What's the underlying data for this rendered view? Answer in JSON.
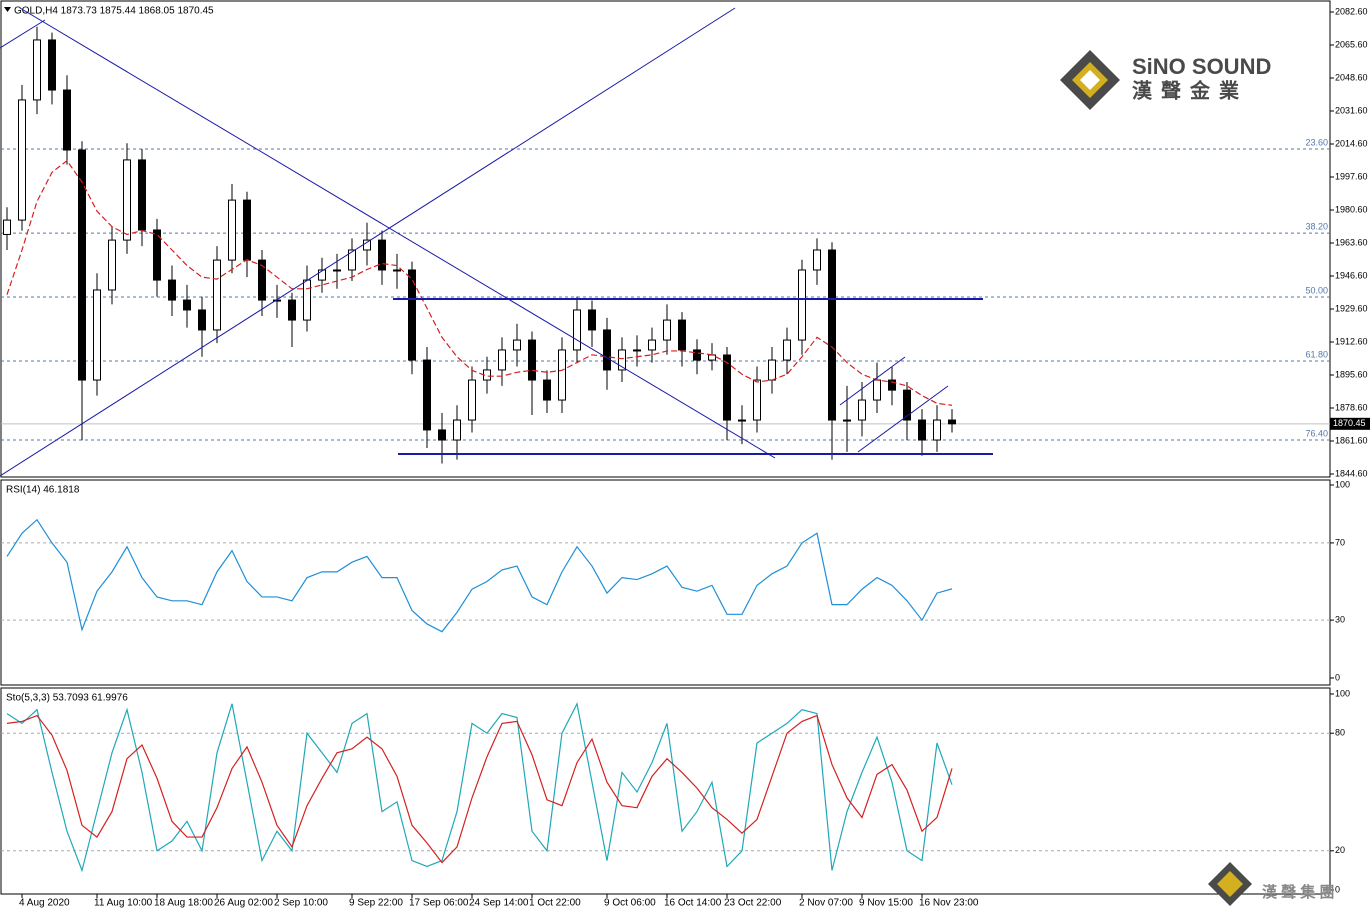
{
  "chart_data": [
    {
      "type": "candlestick",
      "title": "GOLD,H4  1873.73 1875.44 1868.05 1870.45",
      "open": [
        1968,
        1975.4,
        2037.3,
        2068.2,
        2042.4,
        2011.5,
        1893.0,
        1939.4,
        1965.1,
        2006.4,
        1970.3,
        1944.5,
        1934.2,
        1929.1,
        1918.8,
        1954.8,
        1985.7,
        1954.8,
        1934.2,
        1934.2,
        1923.9,
        1944.5,
        1949.7,
        1949.7,
        1960.0,
        1965.1,
        1949.7,
        1949.7,
        1903.3,
        1867.3,
        1862.1,
        1872.4,
        1893.0,
        1898.2,
        1908.5,
        1913.6,
        1893.0,
        1882.7,
        1908.5,
        1929.1,
        1918.8,
        1898.2,
        1908.5,
        1908.5,
        1913.6,
        1923.9,
        1908.5,
        1903.3,
        1905.9,
        1872.4,
        1872.4,
        1893.0,
        1903.3,
        1913.6,
        1949.7,
        1960.0,
        1872.4,
        1872.4,
        1882.7,
        1893.0,
        1887.8,
        1872.4,
        1862.1,
        1872.4
      ],
      "high": [
        1982,
        2045,
        2075,
        2072,
        2050,
        2016,
        1948,
        1972,
        2015,
        2012,
        1976,
        1952,
        1942,
        1936,
        1962,
        1994,
        1990,
        1960,
        1942,
        1938,
        1952,
        1956,
        1958,
        1966,
        1974,
        1970,
        1958,
        1954,
        1910,
        1876,
        1880,
        1900,
        1905,
        1915,
        1922,
        1918,
        1898,
        1915,
        1936,
        1934,
        1925,
        1915,
        1916,
        1920,
        1932,
        1928,
        1914,
        1912,
        1910,
        1880,
        1900,
        1910,
        1920,
        1955,
        1966,
        1964,
        1890,
        1892,
        1902,
        1900,
        1892,
        1878,
        1880,
        1878
      ],
      "low": [
        1960,
        1970,
        2030,
        2035,
        2004,
        1862,
        1885,
        1932,
        1958,
        1962,
        1936,
        1926,
        1920,
        1905,
        1912,
        1948,
        1946,
        1926,
        1925,
        1910,
        1918,
        1938,
        1940,
        1944,
        1952,
        1942,
        1940,
        1896,
        1858,
        1850,
        1852,
        1866,
        1886,
        1890,
        1900,
        1875,
        1876,
        1876,
        1902,
        1910,
        1888,
        1892,
        1900,
        1902,
        1906,
        1900,
        1896,
        1898,
        1862,
        1860,
        1866,
        1886,
        1896,
        1906,
        1942,
        1852,
        1856,
        1864,
        1876,
        1880,
        1862,
        1854,
        1856,
        1866
      ],
      "close": [
        1975.4,
        2037.3,
        2068.2,
        2042.4,
        2011.5,
        1893.0,
        1939.4,
        1965.1,
        2006.4,
        1970.3,
        1944.5,
        1934.2,
        1929.1,
        1918.8,
        1954.8,
        1985.7,
        1954.8,
        1934.2,
        1934.2,
        1923.9,
        1944.5,
        1949.7,
        1949.7,
        1960.0,
        1965.1,
        1949.7,
        1949.7,
        1903.3,
        1867.3,
        1862.1,
        1872.4,
        1893.0,
        1898.2,
        1908.5,
        1913.6,
        1893.0,
        1882.7,
        1908.5,
        1929.1,
        1918.8,
        1898.2,
        1908.5,
        1908.5,
        1913.6,
        1923.9,
        1908.5,
        1903.3,
        1905.9,
        1872.4,
        1872.4,
        1893.0,
        1903.3,
        1913.6,
        1949.7,
        1960.0,
        1872.4,
        1872.4,
        1882.7,
        1893.0,
        1887.8,
        1872.4,
        1862.1,
        1872.4,
        1870.45
      ],
      "up_color": "#ffffff",
      "down_color": "#000000",
      "series": [
        {
          "color": "#d42020",
          "dashed": true,
          "values": [
            1937,
            1960,
            1985,
            2000,
            2006,
            1995,
            1980,
            1972,
            1968,
            1970,
            1968,
            1960,
            1952,
            1946,
            1945,
            1950,
            1955,
            1952,
            1946,
            1940,
            1940,
            1942,
            1944,
            1946,
            1950,
            1953,
            1952,
            1945,
            1930,
            1915,
            1905,
            1898,
            1895,
            1895,
            1897,
            1898,
            1897,
            1898,
            1902,
            1906,
            1905,
            1904,
            1905,
            1906,
            1908,
            1908,
            1907,
            1906,
            1902,
            1896,
            1892,
            1893,
            1896,
            1905,
            1915,
            1910,
            1902,
            1896,
            1893,
            1892,
            1890,
            1885,
            1881,
            1880
          ]
        }
      ],
      "ylim": [
        1844.6,
        2082.6
      ],
      "yticks": [
        {
          "value": 2082.6,
          "label": "2082.60"
        },
        {
          "value": 2065.6,
          "label": "2065.60"
        },
        {
          "value": 2048.6,
          "label": "2048.60"
        },
        {
          "value": 2031.6,
          "label": "2031.60"
        },
        {
          "value": 2014.6,
          "label": "2014.60"
        },
        {
          "value": 1997.6,
          "label": "1997.60"
        },
        {
          "value": 1980.6,
          "label": "1980.60"
        },
        {
          "value": 1963.6,
          "label": "1963.60"
        },
        {
          "value": 1946.6,
          "label": "1946.60"
        },
        {
          "value": 1929.6,
          "label": "1929.60"
        },
        {
          "value": 1912.6,
          "label": "1912.60"
        },
        {
          "value": 1895.6,
          "label": "1895.60"
        },
        {
          "value": 1878.6,
          "label": "1878.60"
        },
        {
          "value": 1861.6,
          "label": "1861.60"
        },
        {
          "value": 1844.6,
          "label": "1844.60"
        }
      ],
      "grid": false,
      "levels": [
        {
          "value": 2012.0,
          "label": "23.60"
        },
        {
          "value": 1968.7,
          "label": "38.20"
        },
        {
          "value": 1935.8,
          "label": "50.00"
        },
        {
          "value": 1902.8,
          "label": "61.80"
        },
        {
          "value": 1862.1,
          "label": "76.40"
        }
      ],
      "current": {
        "value": 1870.45,
        "label": "1870.45"
      }
    },
    {
      "type": "line",
      "title": "RSI(14) 46.1818",
      "series": [
        {
          "color": "#1f8fd8",
          "values": [
            63,
            75,
            82,
            70,
            60,
            25,
            45,
            55,
            68,
            52,
            42,
            40,
            40,
            38,
            55,
            66,
            50,
            42,
            42,
            40,
            52,
            55,
            55,
            60,
            63,
            52,
            52,
            35,
            28,
            24,
            34,
            46,
            50,
            56,
            58,
            42,
            38,
            55,
            68,
            58,
            44,
            52,
            51,
            54,
            58,
            47,
            45,
            48,
            33,
            33,
            48,
            54,
            58,
            70,
            75,
            38,
            38,
            46,
            52,
            48,
            40,
            30,
            44,
            46.1818
          ]
        }
      ],
      "ylim": [
        0,
        100
      ],
      "yticks": [
        100,
        70,
        30,
        0
      ],
      "grid": true
    },
    {
      "type": "line",
      "title": "Sto(5,3,3) 53.7093 61.9976",
      "categories": [
        null,
        "4 Aug 2020",
        null,
        null,
        null,
        null,
        "11 Aug 10:00",
        null,
        null,
        null,
        "18 Aug 18:00",
        null,
        null,
        null,
        "26 Aug 02:00",
        null,
        null,
        null,
        "2 Sep 10:00",
        null,
        null,
        null,
        null,
        "9 Sep 22:00",
        null,
        null,
        null,
        "17 Sep 06:00",
        null,
        null,
        null,
        "24 Sep 14:00",
        null,
        null,
        null,
        "1 Oct 22:00",
        null,
        null,
        null,
        null,
        "9 Oct 06:00",
        null,
        null,
        null,
        "16 Oct 14:00",
        null,
        null,
        null,
        "23 Oct 22:00",
        null,
        null,
        null,
        null,
        "2 Nov 07:00",
        null,
        null,
        null,
        "9 Nov 15:00",
        null,
        null,
        null,
        "16 Nov 23:00",
        null,
        null
      ],
      "series": [
        {
          "color": "#20a8b8",
          "values": [
            90,
            85,
            92,
            60,
            30,
            10,
            40,
            70,
            92,
            60,
            20,
            25,
            35,
            20,
            70,
            95,
            55,
            15,
            30,
            20,
            80,
            70,
            60,
            85,
            90,
            40,
            45,
            15,
            12,
            15,
            40,
            85,
            80,
            90,
            88,
            30,
            20,
            80,
            95,
            55,
            15,
            60,
            50,
            65,
            85,
            30,
            40,
            55,
            12,
            20,
            75,
            80,
            85,
            92,
            90,
            10,
            40,
            60,
            78,
            55,
            20,
            15,
            75,
            53.7093
          ]
        },
        {
          "color": "#d42020",
          "values": [
            85,
            86,
            89,
            79,
            61,
            33,
            27,
            40,
            67,
            74,
            57,
            35,
            27,
            27,
            42,
            62,
            73,
            55,
            33,
            22,
            43,
            57,
            70,
            72,
            78,
            72,
            58,
            33,
            24,
            14,
            22,
            47,
            68,
            85,
            86,
            69,
            46,
            43,
            65,
            77,
            55,
            43,
            42,
            58,
            67,
            60,
            52,
            42,
            36,
            29,
            36,
            58,
            80,
            86,
            89,
            64,
            47,
            37,
            59,
            64,
            51,
            30,
            37,
            61.9976
          ]
        }
      ],
      "ylim": [
        0,
        100
      ],
      "yticks": [
        100,
        80,
        20,
        0
      ],
      "grid": true
    }
  ],
  "logo": {
    "name": "SiNO SOUND",
    "subtitle": "漢聲金業",
    "footer": "漢 聲 集 團"
  }
}
